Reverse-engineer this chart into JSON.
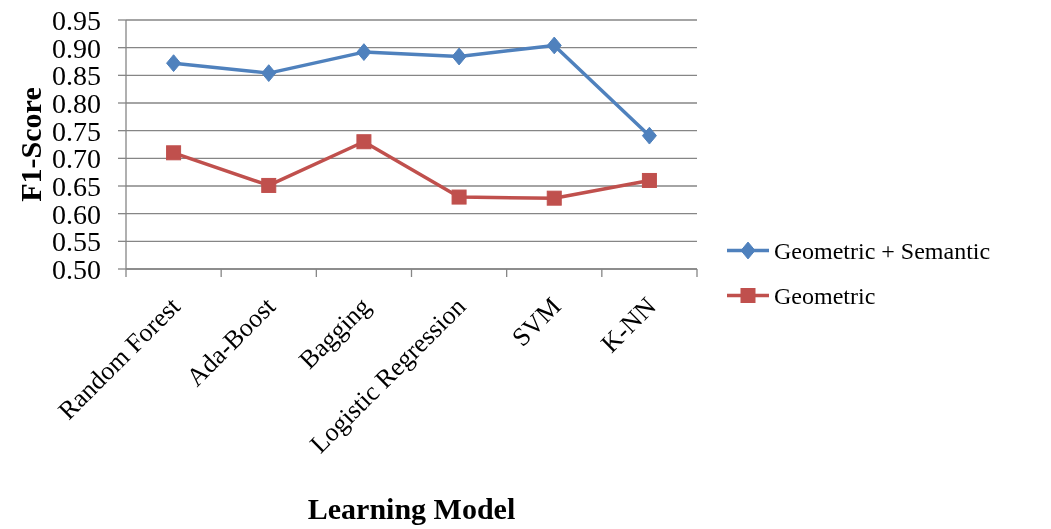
{
  "chart_data": {
    "type": "line",
    "xlabel": "Learning Model",
    "ylabel": "F1-Score",
    "categories": [
      "Random Forest",
      "Ada-Boost",
      "Bagging",
      "Logistic Regression",
      "SVM",
      "K-NN"
    ],
    "series": [
      {
        "name": "Geometric + Semantic",
        "color": "#4f81bd",
        "marker": "diamond",
        "values": [
          0.872,
          0.854,
          0.892,
          0.884,
          0.904,
          0.741
        ]
      },
      {
        "name": "Geometric",
        "color": "#c0504d",
        "marker": "square",
        "values": [
          0.71,
          0.651,
          0.73,
          0.63,
          0.628,
          0.66
        ]
      }
    ],
    "ylim": [
      0.5,
      0.95
    ],
    "yticks": [
      {
        "value": 0.5,
        "label": "0.50"
      },
      0.55,
      {
        "value": 0.6,
        "label": "0.60"
      },
      0.65,
      {
        "value": 0.7,
        "label": "0.70"
      },
      0.75,
      {
        "value": 0.8,
        "label": "0.80"
      },
      0.85,
      {
        "value": 0.9,
        "label": "0.90"
      },
      0.95
    ],
    "grid": "y",
    "legend": "right",
    "line_style": "solid"
  }
}
